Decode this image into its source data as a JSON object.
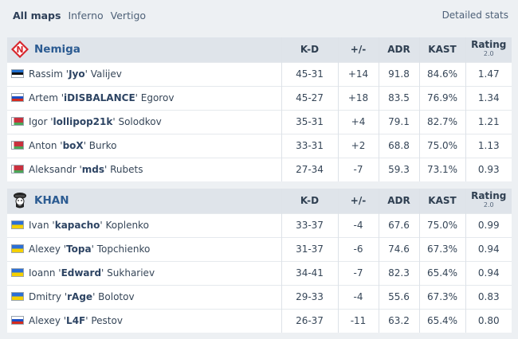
{
  "tabs": [
    {
      "label": "All maps",
      "active": true
    },
    {
      "label": "Inferno",
      "active": false
    },
    {
      "label": "Vertigo",
      "active": false
    }
  ],
  "detailed_stats": "Detailed stats",
  "columns": {
    "kd": "K-D",
    "pm": "+/-",
    "adr": "ADR",
    "kast": "KAST",
    "rating": "Rating",
    "rating_sub": "2.0"
  },
  "teams": [
    {
      "name": "Nemiga",
      "logo_icon": "nemiga-logo",
      "players": [
        {
          "first": "Rassim '",
          "nick": "Jyo",
          "last": "' Valijev",
          "flag": "estonia",
          "kd": "45-31",
          "pm": "+14",
          "adr": "91.8",
          "kast": "84.6%",
          "rating": "1.47"
        },
        {
          "first": "Artem '",
          "nick": "iDISBALANCE",
          "last": "' Egorov",
          "flag": "russia",
          "kd": "45-27",
          "pm": "+18",
          "adr": "83.5",
          "kast": "76.9%",
          "rating": "1.34"
        },
        {
          "first": "Igor '",
          "nick": "lollipop21k",
          "last": "' Solodkov",
          "flag": "belarus",
          "kd": "35-31",
          "pm": "+4",
          "adr": "79.1",
          "kast": "82.7%",
          "rating": "1.21"
        },
        {
          "first": "Anton '",
          "nick": "boX",
          "last": "' Burko",
          "flag": "belarus",
          "kd": "33-31",
          "pm": "+2",
          "adr": "68.8",
          "kast": "75.0%",
          "rating": "1.13"
        },
        {
          "first": "Aleksandr '",
          "nick": "mds",
          "last": "' Rubets",
          "flag": "belarus",
          "kd": "27-34",
          "pm": "-7",
          "adr": "59.3",
          "kast": "73.1%",
          "rating": "0.93"
        }
      ]
    },
    {
      "name": "KHAN",
      "logo_icon": "khan-logo",
      "players": [
        {
          "first": "Ivan '",
          "nick": "kapacho",
          "last": "' Koplenko",
          "flag": "ukraine",
          "kd": "33-37",
          "pm": "-4",
          "adr": "67.6",
          "kast": "75.0%",
          "rating": "0.99"
        },
        {
          "first": "Alexey '",
          "nick": "Topa",
          "last": "' Topchienko",
          "flag": "ukraine",
          "kd": "31-37",
          "pm": "-6",
          "adr": "74.6",
          "kast": "67.3%",
          "rating": "0.94"
        },
        {
          "first": "Ioann '",
          "nick": "Edward",
          "last": "' Sukhariev",
          "flag": "ukraine",
          "kd": "34-41",
          "pm": "-7",
          "adr": "82.3",
          "kast": "65.4%",
          "rating": "0.94"
        },
        {
          "first": "Dmitry '",
          "nick": "rAge",
          "last": "' Bolotov",
          "flag": "ukraine",
          "kd": "29-33",
          "pm": "-4",
          "adr": "55.6",
          "kast": "67.3%",
          "rating": "0.83"
        },
        {
          "first": "Alexey '",
          "nick": "L4F",
          "last": "' Pestov",
          "flag": "russia",
          "kd": "26-37",
          "pm": "-11",
          "adr": "63.2",
          "kast": "65.4%",
          "rating": "0.80"
        }
      ]
    }
  ],
  "colors": {
    "positive": "#3a9a3a",
    "negative": "#d9413e",
    "team_name": "#2b5b92",
    "header_bg": "#dfe4ea"
  }
}
